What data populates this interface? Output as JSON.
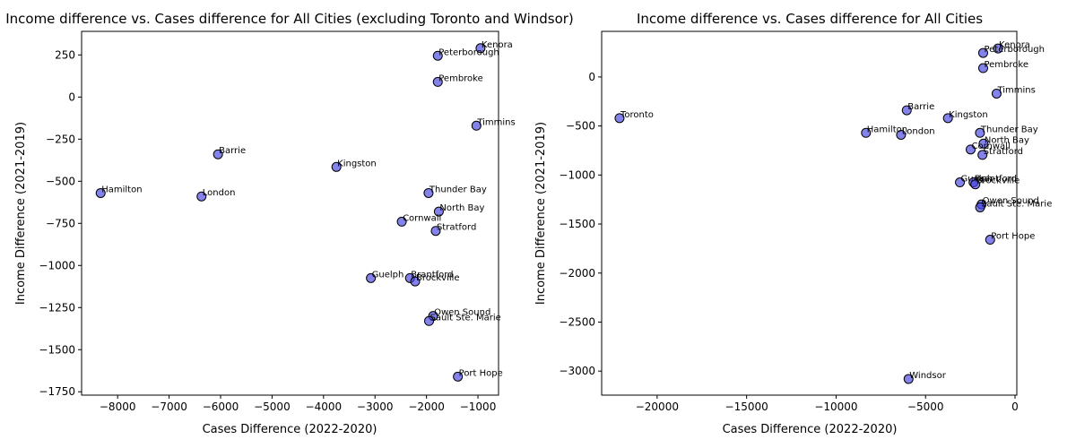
{
  "chart_data": [
    {
      "type": "scatter",
      "title": "Income difference vs. Cases difference for All Cities (excluding Toronto and Windsor)",
      "xlabel": "Cases Difference (2022-2020)",
      "ylabel": "Income Difference (2021-2019)",
      "xlim": [
        -8700,
        -600
      ],
      "ylim": [
        -1770,
        390
      ],
      "xticks": [
        -8000,
        -7000,
        -6000,
        -5000,
        -4000,
        -3000,
        -2000,
        -1000
      ],
      "yticks": [
        -1750,
        -1500,
        -1250,
        -1000,
        -750,
        -500,
        -250,
        0,
        250
      ],
      "xtick_labels": [
        "−8000",
        "−7000",
        "−6000",
        "−5000",
        "−4000",
        "−3000",
        "−2000",
        "−1000"
      ],
      "ytick_labels": [
        "−1750",
        "−1500",
        "−1250",
        "−1000",
        "−750",
        "−500",
        "−250",
        "0",
        "250"
      ],
      "grid": false,
      "marker_color": "#4040e0",
      "points": [
        {
          "label": "Kenora",
          "x": -950,
          "y": 290
        },
        {
          "label": "Peterborough",
          "x": -1780,
          "y": 245
        },
        {
          "label": "Pembroke",
          "x": -1780,
          "y": 90
        },
        {
          "label": "Timmins",
          "x": -1030,
          "y": -170
        },
        {
          "label": "Barrie",
          "x": -6050,
          "y": -340
        },
        {
          "label": "Kingston",
          "x": -3750,
          "y": -415
        },
        {
          "label": "Hamilton",
          "x": -8330,
          "y": -570
        },
        {
          "label": "London",
          "x": -6370,
          "y": -590
        },
        {
          "label": "Thunder Bay",
          "x": -1960,
          "y": -570
        },
        {
          "label": "North Bay",
          "x": -1760,
          "y": -680
        },
        {
          "label": "Cornwall",
          "x": -2480,
          "y": -740
        },
        {
          "label": "Stratford",
          "x": -1820,
          "y": -795
        },
        {
          "label": "Guelph",
          "x": -3080,
          "y": -1075
        },
        {
          "label": "Brantford",
          "x": -2320,
          "y": -1075
        },
        {
          "label": "Brockville",
          "x": -2220,
          "y": -1095
        },
        {
          "label": "Owen Sound",
          "x": -1870,
          "y": -1300
        },
        {
          "label": "Sault Ste. Marie",
          "x": -1950,
          "y": -1330
        },
        {
          "label": "Port Hope",
          "x": -1390,
          "y": -1660
        }
      ]
    },
    {
      "type": "scatter",
      "title": "Income difference vs. Cases difference for All Cities",
      "xlabel": "Cases Difference (2022-2020)",
      "ylabel": "Income Difference (2021-2019)",
      "xlim": [
        -23100,
        100
      ],
      "ylim": [
        -3245,
        465
      ],
      "xticks": [
        -20000,
        -15000,
        -10000,
        -5000,
        0
      ],
      "yticks": [
        -3000,
        -2500,
        -2000,
        -1500,
        -1000,
        -500,
        0
      ],
      "xtick_labels": [
        "−20000",
        "−15000",
        "−10000",
        "−5000",
        "0"
      ],
      "ytick_labels": [
        "−3000",
        "−2500",
        "−2000",
        "−1500",
        "−1000",
        "−500",
        "0"
      ],
      "grid": false,
      "marker_color": "#4040e0",
      "points": [
        {
          "label": "Kenora",
          "x": -950,
          "y": 290
        },
        {
          "label": "Peterborough",
          "x": -1780,
          "y": 245
        },
        {
          "label": "Pembroke",
          "x": -1780,
          "y": 90
        },
        {
          "label": "Timmins",
          "x": -1030,
          "y": -170
        },
        {
          "label": "Toronto",
          "x": -22100,
          "y": -420
        },
        {
          "label": "Barrie",
          "x": -6050,
          "y": -340
        },
        {
          "label": "Kingston",
          "x": -3750,
          "y": -420
        },
        {
          "label": "Thunder Bay",
          "x": -1960,
          "y": -570
        },
        {
          "label": "Hamilton",
          "x": -8330,
          "y": -570
        },
        {
          "label": "London",
          "x": -6370,
          "y": -590
        },
        {
          "label": "North Bay",
          "x": -1760,
          "y": -680
        },
        {
          "label": "Cornwall",
          "x": -2480,
          "y": -740
        },
        {
          "label": "Stratford",
          "x": -1820,
          "y": -795
        },
        {
          "label": "Guelph",
          "x": -3080,
          "y": -1075
        },
        {
          "label": "Brantford",
          "x": -2320,
          "y": -1075
        },
        {
          "label": "Brockville",
          "x": -2220,
          "y": -1095
        },
        {
          "label": "Owen Sound",
          "x": -1870,
          "y": -1300
        },
        {
          "label": "Sault Ste. Marie",
          "x": -1950,
          "y": -1330
        },
        {
          "label": "Port Hope",
          "x": -1390,
          "y": -1660
        },
        {
          "label": "Windsor",
          "x": -5950,
          "y": -3080
        }
      ]
    }
  ]
}
